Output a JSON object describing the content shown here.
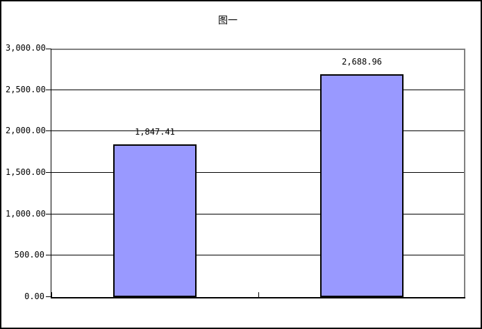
{
  "window": {
    "background_color": "#FFFFFF",
    "border_color": "#000000"
  },
  "chart_data": {
    "type": "bar",
    "title": "图一",
    "categories": [
      "",
      ""
    ],
    "values": [
      1847.41,
      2688.96
    ],
    "data_labels": [
      "1,847.41",
      "2,688.96"
    ],
    "xlabel": "",
    "ylabel": "",
    "ylim": [
      0,
      3000
    ],
    "ytick_interval": 500,
    "ytick_labels": [
      "0.00",
      "500.00",
      "1,000.00",
      "1,500.00",
      "2,000.00",
      "2,500.00",
      "3,000.00"
    ],
    "grid": true,
    "legend": "none",
    "bar_color": "#9999FF",
    "bar_border_color": "#000000",
    "gridline_color": "#000000",
    "axis_color": "#000000",
    "plot_border_color": "#808080"
  }
}
